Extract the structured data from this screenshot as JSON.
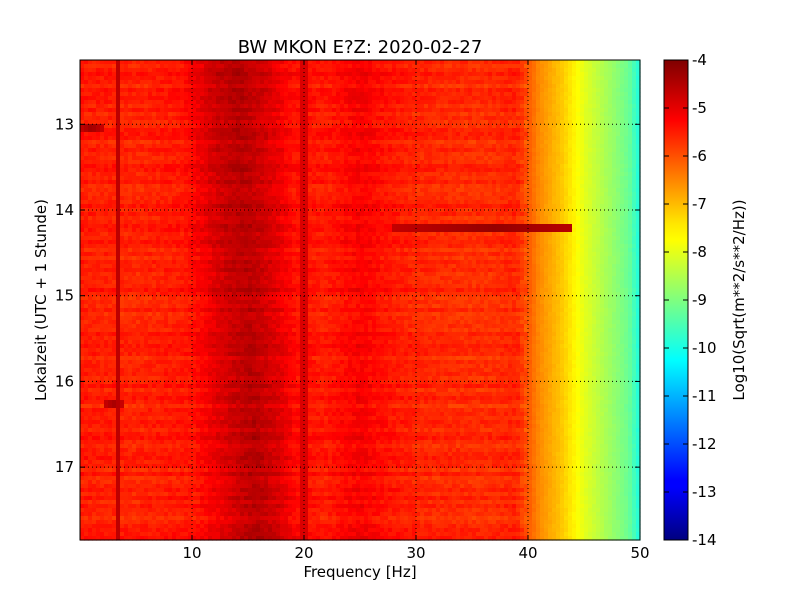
{
  "chart_data": {
    "type": "heatmap",
    "title": "BW MKON E?Z: 2020-02-27",
    "xlabel": "Frequency [Hz]",
    "ylabel": "Lokalzeit (UTC + 1 Stunde)",
    "colorbar_label": "Log10(Sqrt(m**2/s**2/Hz))",
    "colormap": "jet",
    "xlim": [
      0,
      50
    ],
    "ylim_hours": [
      12.25,
      17.85
    ],
    "y_inverted": true,
    "clim": [
      -14,
      -4
    ],
    "grid": "dotted",
    "x_ticks": [
      "10",
      "20",
      "30",
      "40",
      "50"
    ],
    "x_tick_values": [
      10,
      20,
      30,
      40,
      50
    ],
    "y_ticks": [
      "13",
      "14",
      "15",
      "16",
      "17"
    ],
    "y_tick_values": [
      13,
      14,
      15,
      16,
      17
    ],
    "colorbar_ticks": [
      "-4",
      "-5",
      "-6",
      "-7",
      "-8",
      "-9",
      "-10",
      "-11",
      "-12",
      "-13",
      "-14"
    ],
    "colorbar_tick_values": [
      -4,
      -5,
      -6,
      -7,
      -8,
      -9,
      -10,
      -11,
      -12,
      -13,
      -14
    ],
    "spectrum_profile": [
      {
        "f": 0,
        "v": -5.5
      },
      {
        "f": 5,
        "v": -5.6
      },
      {
        "f": 9,
        "v": -5.45
      },
      {
        "f": 12,
        "v": -4.75
      },
      {
        "f": 14,
        "v": -4.55
      },
      {
        "f": 16.5,
        "v": -4.9
      },
      {
        "f": 19,
        "v": -5.4
      },
      {
        "f": 22,
        "v": -5.5
      },
      {
        "f": 25,
        "v": -5.2
      },
      {
        "f": 27,
        "v": -5.4
      },
      {
        "f": 30,
        "v": -5.6
      },
      {
        "f": 36,
        "v": -5.7
      },
      {
        "f": 39,
        "v": -5.6
      },
      {
        "f": 41,
        "v": -6.6
      },
      {
        "f": 43,
        "v": -7.2
      },
      {
        "f": 45,
        "v": -8.0
      },
      {
        "f": 47,
        "v": -8.6
      },
      {
        "f": 49,
        "v": -9.2
      },
      {
        "f": 50,
        "v": -10.0
      }
    ],
    "features": [
      {
        "kind": "spectral_line",
        "f": 20.0,
        "strength": -4.9
      },
      {
        "kind": "spectral_line",
        "f": 3.5,
        "strength": -4.6
      },
      {
        "kind": "burst",
        "t": 14.2,
        "f_from": 28,
        "f_to": 44,
        "peak_f": 37,
        "strength": -4.2
      },
      {
        "kind": "burst",
        "t": 13.05,
        "f_from": 0,
        "f_to": 2,
        "peak_f": 1,
        "strength": -4.3
      },
      {
        "kind": "burst",
        "t": 16.27,
        "f_from": 2,
        "f_to": 4,
        "peak_f": 3,
        "strength": -4.4
      }
    ]
  }
}
